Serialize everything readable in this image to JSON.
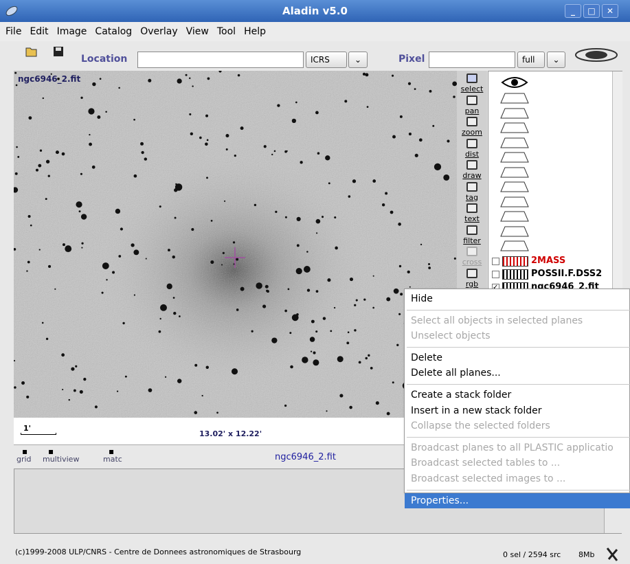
{
  "window": {
    "title": "Aladin v5.0"
  },
  "menu": [
    "File",
    "Edit",
    "Image",
    "Catalog",
    "Overlay",
    "View",
    "Tool",
    "Help"
  ],
  "toolbar": {
    "location_label": "Location",
    "frame": "ICRS",
    "pixel_label": "Pixel",
    "pixel_mode": "full"
  },
  "view": {
    "image_label": "ngc6946_2.fit",
    "scale": "1'",
    "size": "13.02' x 12.22'",
    "current_plane": "ngc6946_2.fit"
  },
  "view_tools": [
    "grid",
    "multiview",
    "matc"
  ],
  "tools": [
    {
      "label": "select"
    },
    {
      "label": "pan"
    },
    {
      "label": "zoom"
    },
    {
      "label": "dist"
    },
    {
      "label": "draw"
    },
    {
      "label": "tag"
    },
    {
      "label": "text"
    },
    {
      "label": "filter"
    },
    {
      "label": "cross",
      "disabled": true
    },
    {
      "label": "rgb"
    }
  ],
  "planes": [
    {
      "name": "2MASS",
      "color": "#d00000"
    },
    {
      "name": "POSSII.F.DSS2",
      "color": "#000000"
    },
    {
      "name": "ngc6946_2.fit",
      "color": "#000000",
      "checked": true
    }
  ],
  "context_menu": [
    [
      {
        "label": "Hide"
      }
    ],
    [
      {
        "label": "Select all objects in selected planes",
        "disabled": true
      },
      {
        "label": "Unselect objects",
        "disabled": true
      }
    ],
    [
      {
        "label": "Delete"
      },
      {
        "label": "Delete all planes..."
      }
    ],
    [
      {
        "label": "Create a stack folder"
      },
      {
        "label": "Insert in a new stack folder"
      },
      {
        "label": "Collapse the selected folders",
        "disabled": true
      }
    ],
    [
      {
        "label": "Broadcast planes to all PLASTIC applicatio",
        "disabled": true
      },
      {
        "label": "Broadcast selected tables to ...",
        "disabled": true
      },
      {
        "label": "Broadcast selected images to ...",
        "disabled": true
      }
    ],
    [
      {
        "label": "Properties...",
        "selected": true
      }
    ]
  ],
  "status": {
    "copyright": "(c)1999-2008 ULP/CNRS - Centre de Donnees astronomiques de Strasbourg",
    "sources": "0 sel / 2594 src",
    "memory": "8Mb"
  }
}
